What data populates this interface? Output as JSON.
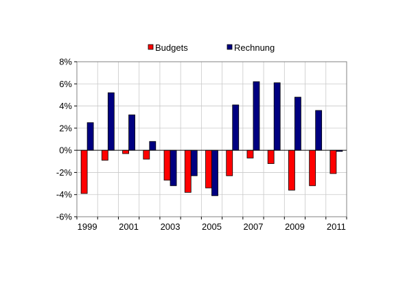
{
  "chart_data": {
    "type": "bar",
    "categories": [
      "1999",
      "2000",
      "2001",
      "2002",
      "2003",
      "2004",
      "2005",
      "2006",
      "2007",
      "2008",
      "2009",
      "2010",
      "2011"
    ],
    "series": [
      {
        "name": "Budgets",
        "color": "#ff0000",
        "values": [
          -3.9,
          -0.9,
          -0.3,
          -0.8,
          -2.7,
          -3.8,
          -3.4,
          -2.3,
          -0.7,
          -1.2,
          -3.6,
          -3.2,
          -2.1
        ]
      },
      {
        "name": "Rechnung",
        "color": "#000080",
        "values": [
          2.5,
          5.2,
          3.2,
          0.8,
          -3.2,
          -2.3,
          -4.1,
          4.1,
          6.2,
          6.1,
          4.8,
          3.6,
          -0.1
        ]
      }
    ],
    "xtick_labels": [
      "1999",
      "2001",
      "2003",
      "2005",
      "2007",
      "2009",
      "2011"
    ],
    "ytick_labels": [
      "8%",
      "6%",
      "4%",
      "2%",
      "0%",
      "-2%",
      "-4%",
      "-6%"
    ],
    "yticks": [
      8,
      6,
      4,
      2,
      0,
      -2,
      -4,
      -6
    ],
    "ylim": [
      -6,
      8
    ],
    "grid": true,
    "legend": "top-center",
    "title": "",
    "xlabel": "",
    "ylabel": ""
  }
}
